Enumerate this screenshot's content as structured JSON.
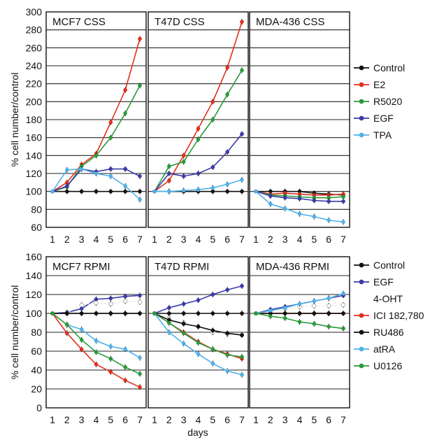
{
  "chart_data": [
    {
      "type": "line",
      "group": "top",
      "panels": [
        "MCF7 CSS",
        "T47D CSS",
        "MDA-436 CSS"
      ],
      "ylabel": "% cell number/control",
      "ylim": [
        60,
        300
      ],
      "yticks": [
        60,
        80,
        100,
        120,
        140,
        160,
        180,
        200,
        220,
        240,
        260,
        280,
        300
      ],
      "xticks": [
        1,
        2,
        3,
        4,
        5,
        6,
        7
      ],
      "grid": true,
      "legend_position": "right",
      "legend": [
        "Control",
        "E2",
        "R5020",
        "EGF",
        "TPA"
      ],
      "series_colors": {
        "Control": "#111111",
        "E2": "#e0301e",
        "R5020": "#2a9a3a",
        "EGF": "#3b3ba8",
        "TPA": "#4fb0e8"
      },
      "data": {
        "MCF7 CSS": {
          "Control": [
            100,
            100,
            100,
            100,
            100,
            100,
            100
          ],
          "E2": [
            100,
            110,
            130,
            142,
            177,
            213,
            270
          ],
          "R5020": [
            100,
            105,
            128,
            140,
            160,
            187,
            218
          ],
          "EGF": [
            100,
            106,
            125,
            122,
            125,
            125,
            117
          ],
          "TPA": [
            100,
            124,
            125,
            120,
            117,
            106,
            91
          ]
        },
        "T47D CSS": {
          "Control": [
            100,
            100,
            100,
            100,
            100,
            100,
            100
          ],
          "E2": [
            100,
            112,
            140,
            170,
            200,
            238,
            289
          ],
          "R5020": [
            100,
            128,
            133,
            158,
            180,
            208,
            235
          ],
          "EGF": [
            100,
            120,
            117,
            120,
            127,
            144,
            164
          ],
          "TPA": [
            100,
            100,
            101,
            102,
            104,
            108,
            113
          ]
        },
        "MDA-436 CSS": {
          "Control": [
            100,
            100,
            100,
            100,
            98,
            97,
            96
          ],
          "E2": [
            100,
            97,
            98,
            97,
            96,
            96,
            97
          ],
          "R5020": [
            100,
            96,
            95,
            94,
            93,
            93,
            94
          ],
          "EGF": [
            100,
            95,
            93,
            92,
            90,
            89,
            89
          ],
          "TPA": [
            100,
            86,
            81,
            75,
            72,
            68,
            66
          ]
        }
      }
    },
    {
      "type": "line",
      "group": "bottom",
      "panels": [
        "MCF7 RPMI",
        "T47D RPMI",
        "MDA-436 RPMI"
      ],
      "ylabel": "% cell number/control",
      "xlabel": "days",
      "ylim": [
        0,
        160
      ],
      "yticks": [
        0,
        20,
        40,
        60,
        80,
        100,
        120,
        140,
        160
      ],
      "xticks": [
        1,
        2,
        3,
        4,
        5,
        6,
        7
      ],
      "grid": true,
      "legend_position": "right",
      "legend": [
        "Control",
        "EGF",
        "4-OHT",
        "ICI 182,780",
        "RU486",
        "atRA",
        "U0126"
      ],
      "series_colors": {
        "Control": "#111111",
        "EGF": "#3b3ba8",
        "4-OHT": "#ffffff",
        "ICI 182,780": "#e0301e",
        "RU486": "#111111",
        "atRA": "#4fb0e8",
        "U0126": "#2a9a3a"
      },
      "data": {
        "MCF7 RPMI": {
          "Control": [
            100,
            100,
            100,
            100,
            100,
            100,
            100
          ],
          "EGF": [
            100,
            101,
            105,
            115,
            116,
            118,
            119
          ],
          "4-OHT": [
            100,
            100,
            109,
            111,
            110,
            113,
            112
          ],
          "ICI 182,780": [
            100,
            79,
            62,
            46,
            38,
            29,
            22
          ],
          "RU486": [
            100,
            100,
            100,
            100,
            100,
            100,
            100
          ],
          "atRA": [
            100,
            88,
            83,
            71,
            65,
            62,
            53
          ],
          "U0126": [
            100,
            88,
            72,
            59,
            52,
            43,
            36
          ]
        },
        "T47D RPMI": {
          "Control": [
            100,
            100,
            100,
            100,
            100,
            100,
            100
          ],
          "EGF": [
            100,
            106,
            110,
            114,
            120,
            125,
            129
          ],
          "4-OHT": [
            100,
            95,
            90,
            86,
            80,
            78,
            77
          ],
          "ICI 182,780": [
            100,
            90,
            80,
            70,
            62,
            57,
            52
          ],
          "RU486": [
            100,
            93,
            89,
            86,
            82,
            79,
            77
          ],
          "atRA": [
            100,
            80,
            68,
            57,
            47,
            39,
            35
          ],
          "U0126": [
            100,
            90,
            79,
            69,
            62,
            56,
            54
          ]
        },
        "MDA-436 RPMI": {
          "Control": [
            100,
            100,
            100,
            100,
            100,
            100,
            100
          ],
          "EGF": [
            100,
            104,
            107,
            110,
            113,
            116,
            119
          ],
          "4-OHT": [
            100,
            102,
            105,
            107,
            108,
            108,
            109
          ],
          "ICI 182,780": [
            100,
            100,
            100,
            100,
            100,
            100,
            100
          ],
          "RU486": [
            100,
            100,
            100,
            100,
            100,
            100,
            100
          ],
          "atRA": [
            100,
            103,
            106,
            110,
            113,
            116,
            121
          ],
          "U0126": [
            100,
            97,
            95,
            91,
            89,
            86,
            84
          ]
        }
      }
    }
  ]
}
